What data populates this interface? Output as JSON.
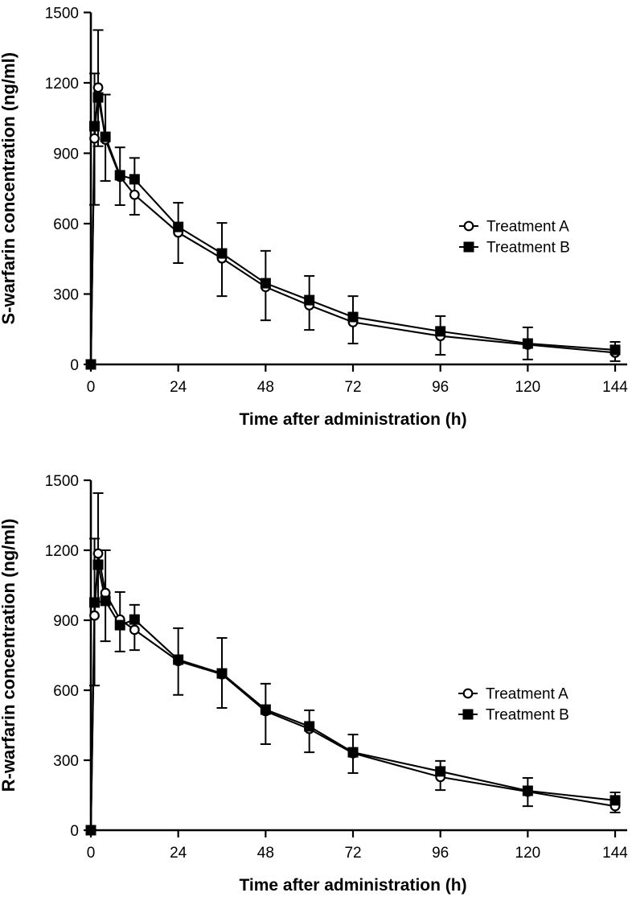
{
  "page": {
    "background": "#ffffff",
    "ink": "#000000"
  },
  "chart_data": [
    {
      "type": "line",
      "title": "",
      "xlabel": "Time after administration (h)",
      "ylabel": "S-warfarin concentration (ng/ml)",
      "xlim": [
        0,
        144
      ],
      "ylim": [
        0,
        1500
      ],
      "xticks": [
        0,
        24,
        48,
        72,
        96,
        120,
        144
      ],
      "yticks": [
        0,
        300,
        600,
        900,
        1200,
        1500
      ],
      "grid": false,
      "legend_position": "right-middle",
      "x": [
        0,
        1,
        2,
        4,
        8,
        12,
        24,
        36,
        48,
        60,
        72,
        96,
        120,
        144
      ],
      "series": [
        {
          "name": "Treatment A",
          "marker": "circle",
          "values": [
            0,
            963,
            1180,
            958,
            800,
            723,
            562,
            452,
            330,
            252,
            180,
            121,
            84,
            50
          ]
        },
        {
          "name": "Treatment B",
          "marker": "square",
          "values": [
            0,
            1015,
            1138,
            970,
            806,
            789,
            586,
            473,
            346,
            274,
            202,
            141,
            89,
            62
          ]
        }
      ],
      "error_bars": [
        {
          "t": 1,
          "lo": 680,
          "hi": 1240
        },
        {
          "t": 2,
          "lo": 930,
          "hi": 1425
        },
        {
          "t": 4,
          "lo": 782,
          "hi": 1150
        },
        {
          "t": 8,
          "lo": 679,
          "hi": 925
        },
        {
          "t": 12,
          "lo": 638,
          "hi": 880
        },
        {
          "t": 24,
          "lo": 432,
          "hi": 689
        },
        {
          "t": 36,
          "lo": 291,
          "hi": 603
        },
        {
          "t": 48,
          "lo": 188,
          "hi": 484
        },
        {
          "t": 60,
          "lo": 147,
          "hi": 377
        },
        {
          "t": 72,
          "lo": 89,
          "hi": 291
        },
        {
          "t": 96,
          "lo": 41,
          "hi": 206
        },
        {
          "t": 120,
          "lo": 21,
          "hi": 158
        },
        {
          "t": 144,
          "lo": 14,
          "hi": 96
        }
      ]
    },
    {
      "type": "line",
      "title": "",
      "xlabel": "Time after administration (h)",
      "ylabel": "R-warfarin concentration (ng/ml)",
      "xlim": [
        0,
        144
      ],
      "ylim": [
        0,
        1500
      ],
      "xticks": [
        0,
        24,
        48,
        72,
        96,
        120,
        144
      ],
      "yticks": [
        0,
        300,
        600,
        900,
        1200,
        1500
      ],
      "grid": false,
      "legend_position": "right-middle",
      "x": [
        0,
        1,
        2,
        4,
        8,
        12,
        24,
        36,
        48,
        60,
        72,
        96,
        120,
        144
      ],
      "series": [
        {
          "name": "Treatment A",
          "marker": "circle",
          "values": [
            0,
            920,
            1186,
            1017,
            903,
            859,
            725,
            668,
            510,
            434,
            330,
            228,
            165,
            103
          ]
        },
        {
          "name": "Treatment B",
          "marker": "square",
          "values": [
            0,
            976,
            1138,
            983,
            879,
            903,
            731,
            672,
            517,
            445,
            334,
            252,
            169,
            128
          ]
        }
      ],
      "error_bars": [
        {
          "t": 1,
          "lo": 620,
          "hi": 1250
        },
        {
          "t": 2,
          "lo": 980,
          "hi": 1445
        },
        {
          "t": 4,
          "lo": 810,
          "hi": 1200
        },
        {
          "t": 8,
          "lo": 766,
          "hi": 1021
        },
        {
          "t": 12,
          "lo": 772,
          "hi": 966
        },
        {
          "t": 24,
          "lo": 580,
          "hi": 866
        },
        {
          "t": 36,
          "lo": 524,
          "hi": 824
        },
        {
          "t": 48,
          "lo": 369,
          "hi": 628
        },
        {
          "t": 60,
          "lo": 334,
          "hi": 514
        },
        {
          "t": 72,
          "lo": 245,
          "hi": 410
        },
        {
          "t": 96,
          "lo": 172,
          "hi": 297
        },
        {
          "t": 120,
          "lo": 103,
          "hi": 224
        },
        {
          "t": 144,
          "lo": 76,
          "hi": 162
        }
      ]
    }
  ]
}
